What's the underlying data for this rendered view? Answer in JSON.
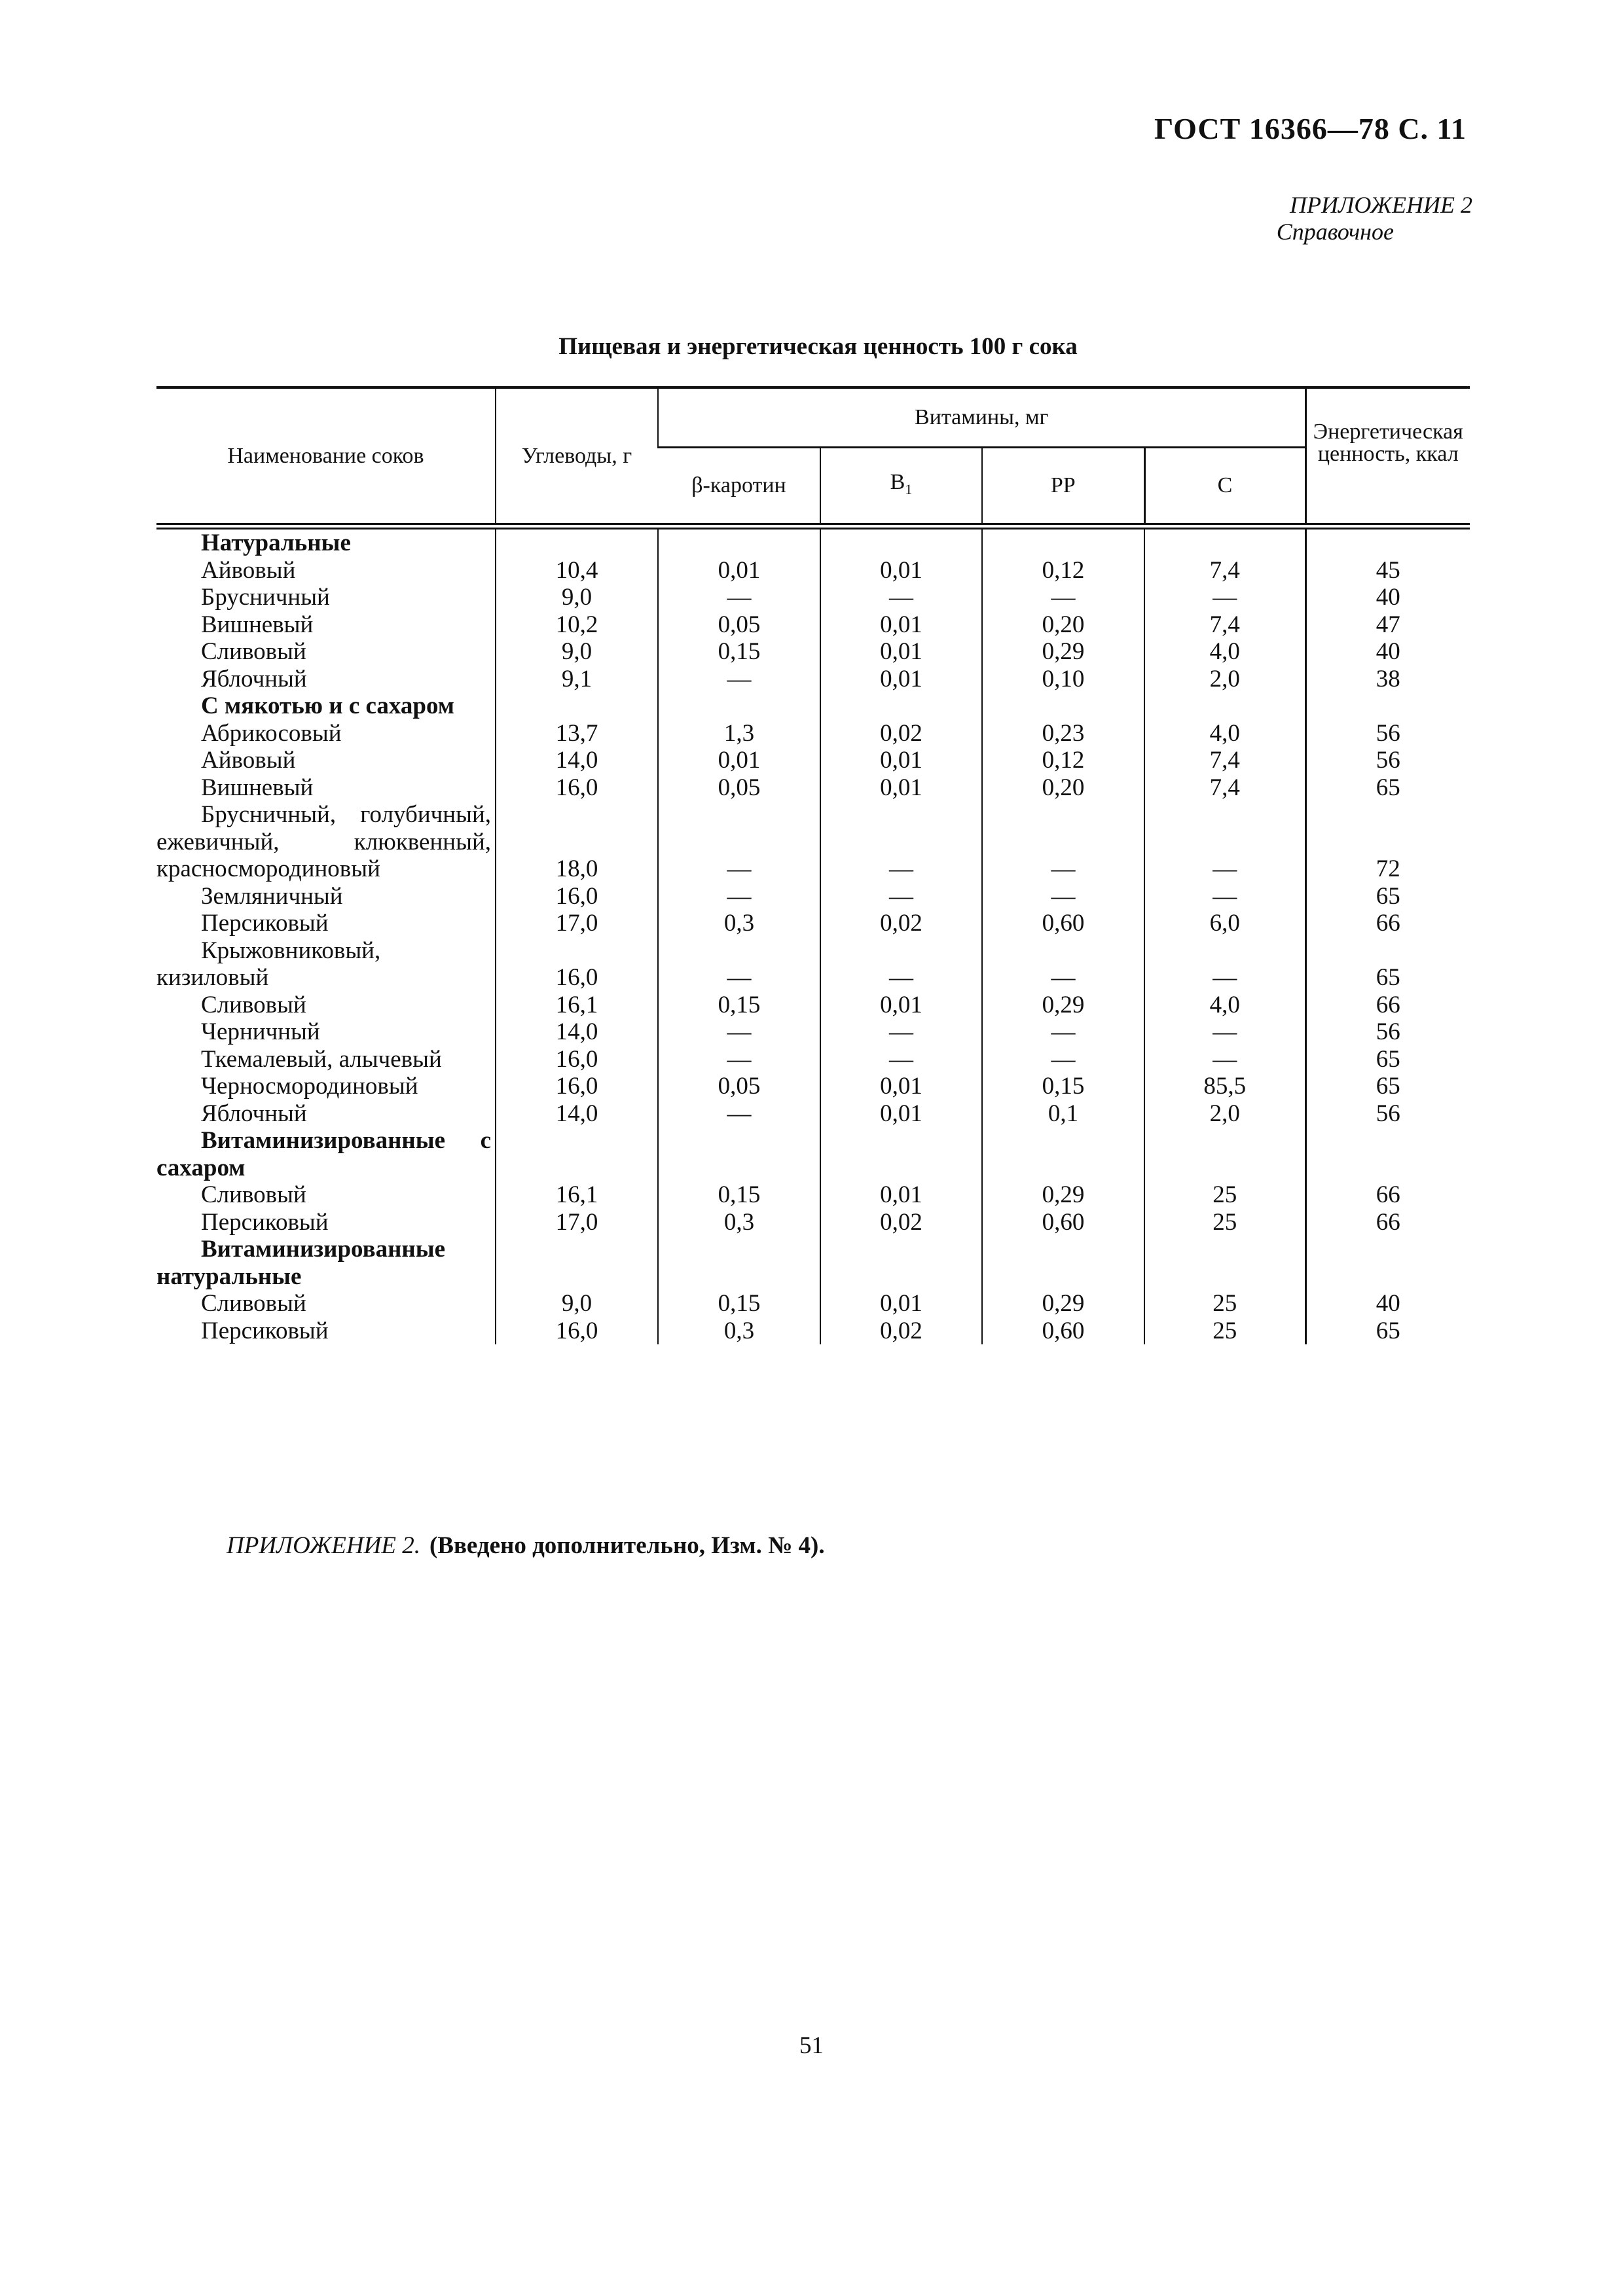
{
  "header": {
    "doc_ref": "ГОСТ 16366—78 С. 11",
    "appendix": "ПРИЛОЖЕНИЕ 2",
    "appendix_type": "Справочное"
  },
  "table": {
    "title": "Пищевая и энергетическая ценность 100 г сока",
    "columns": {
      "name": "Наименование соков",
      "carbs": "Углеводы, г",
      "vitamins": "Витамины, мг",
      "beta": "β-каротин",
      "b1": "B",
      "b1_sub": "1",
      "pp": "PP",
      "c": "C",
      "energy": "Энергетическая ценность, ккал"
    },
    "sections": [
      {
        "title": "Натуральные",
        "rows": [
          {
            "name": "Айвовый",
            "carbs": "10,4",
            "beta": "0,01",
            "b1": "0,01",
            "pp": "0,12",
            "c": "7,4",
            "kcal": "45"
          },
          {
            "name": "Брусничный",
            "carbs": "9,0",
            "beta": "—",
            "b1": "—",
            "pp": "—",
            "c": "—",
            "kcal": "40"
          },
          {
            "name": "Вишневый",
            "carbs": "10,2",
            "beta": "0,05",
            "b1": "0,01",
            "pp": "0,20",
            "c": "7,4",
            "kcal": "47"
          },
          {
            "name": "Сливовый",
            "carbs": "9,0",
            "beta": "0,15",
            "b1": "0,01",
            "pp": "0,29",
            "c": "4,0",
            "kcal": "40"
          },
          {
            "name": "Яблочный",
            "carbs": "9,1",
            "beta": "—",
            "b1": "0,01",
            "pp": "0,10",
            "c": "2,0",
            "kcal": "38"
          }
        ]
      },
      {
        "title": "С мякотью и с сахаром",
        "rows": [
          {
            "name": "Абрикосовый",
            "carbs": "13,7",
            "beta": "1,3",
            "b1": "0,02",
            "pp": "0,23",
            "c": "4,0",
            "kcal": "56"
          },
          {
            "name": "Айвовый",
            "carbs": "14,0",
            "beta": "0,01",
            "b1": "0,01",
            "pp": "0,12",
            "c": "7,4",
            "kcal": "56"
          },
          {
            "name": "Вишневый",
            "carbs": "16,0",
            "beta": "0,05",
            "b1": "0,01",
            "pp": "0,20",
            "c": "7,4",
            "kcal": "65"
          },
          {
            "name": "Брусничный, голубичный, ежевичный, клюквенный, красносмородиновый",
            "carbs": "18,0",
            "beta": "—",
            "b1": "—",
            "pp": "—",
            "c": "—",
            "kcal": "72"
          },
          {
            "name": "Земляничный",
            "carbs": "16,0",
            "beta": "—",
            "b1": "—",
            "pp": "—",
            "c": "—",
            "kcal": "65"
          },
          {
            "name": "Персиковый",
            "carbs": "17,0",
            "beta": "0,3",
            "b1": "0,02",
            "pp": "0,60",
            "c": "6,0",
            "kcal": "66"
          },
          {
            "name": "Крыжовниковый, кизиловый",
            "carbs": "16,0",
            "beta": "—",
            "b1": "—",
            "pp": "—",
            "c": "—",
            "kcal": "65"
          },
          {
            "name": "Сливовый",
            "carbs": "16,1",
            "beta": "0,15",
            "b1": "0,01",
            "pp": "0,29",
            "c": "4,0",
            "kcal": "66"
          },
          {
            "name": "Черничный",
            "carbs": "14,0",
            "beta": "—",
            "b1": "—",
            "pp": "—",
            "c": "—",
            "kcal": "56"
          },
          {
            "name": "Ткемалевый, алычевый",
            "carbs": "16,0",
            "beta": "—",
            "b1": "—",
            "pp": "—",
            "c": "—",
            "kcal": "65"
          },
          {
            "name": "Черносмородиновый",
            "carbs": "16,0",
            "beta": "0,05",
            "b1": "0,01",
            "pp": "0,15",
            "c": "85,5",
            "kcal": "65"
          },
          {
            "name": "Яблочный",
            "carbs": "14,0",
            "beta": "—",
            "b1": "0,01",
            "pp": "0,1",
            "c": "2,0",
            "kcal": "56"
          }
        ]
      },
      {
        "title": "Витаминизированные с сахаром",
        "rows": [
          {
            "name": "Сливовый",
            "carbs": "16,1",
            "beta": "0,15",
            "b1": "0,01",
            "pp": "0,29",
            "c": "25",
            "kcal": "66"
          },
          {
            "name": "Персиковый",
            "carbs": "17,0",
            "beta": "0,3",
            "b1": "0,02",
            "pp": "0,60",
            "c": "25",
            "kcal": "66"
          }
        ]
      },
      {
        "title": "Витаминизированные натуральные",
        "rows": [
          {
            "name": "Сливовый",
            "carbs": "9,0",
            "beta": "0,15",
            "b1": "0,01",
            "pp": "0,29",
            "c": "25",
            "kcal": "40"
          },
          {
            "name": "Персиковый",
            "carbs": "16,0",
            "beta": "0,3",
            "b1": "0,02",
            "pp": "0,60",
            "c": "25",
            "kcal": "65"
          }
        ]
      }
    ]
  },
  "note": {
    "label": "ПРИЛОЖЕНИЕ 2.",
    "text": "(Введено дополнительно, Изм. № 4)."
  },
  "page_number": "51"
}
